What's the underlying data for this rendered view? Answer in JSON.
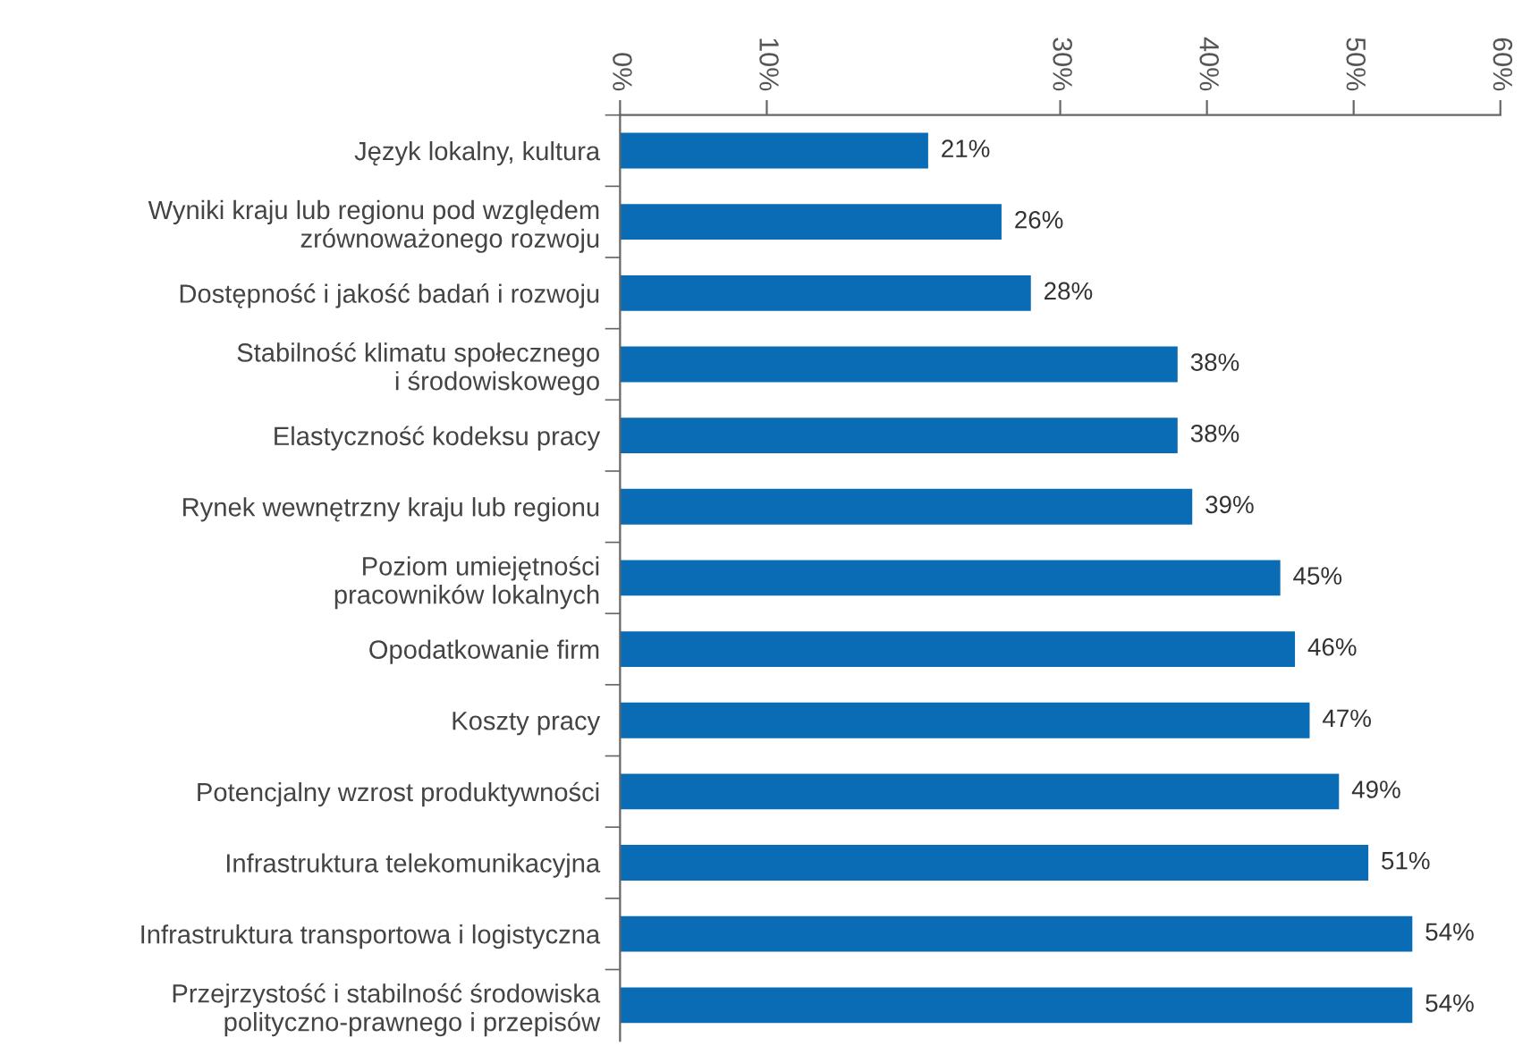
{
  "chart_data": {
    "type": "bar",
    "orientation": "horizontal",
    "categories": [
      "Język lokalny, kultura",
      "Wyniki kraju lub regionu pod względem\nzrównoważonego rozwoju",
      "Dostępność i jakość badań i rozwoju",
      "Stabilność klimatu społecznego\ni środowiskowego",
      "Elastyczność kodeksu pracy",
      "Rynek wewnętrzny kraju lub regionu",
      "Poziom umiejętności\npracowników lokalnych",
      "Opodatkowanie firm",
      "Koszty pracy",
      "Potencjalny wzrost produktywności",
      "Infrastruktura telekomunikacyjna",
      "Infrastruktura transportowa i logistyczna",
      "Przejrzystość i stabilność środowiska\npolityczno-prawnego i przepisów"
    ],
    "values": [
      21,
      26,
      28,
      38,
      38,
      39,
      45,
      46,
      47,
      49,
      51,
      54,
      54
    ],
    "value_labels": [
      "21%",
      "26%",
      "28%",
      "38%",
      "38%",
      "39%",
      "45%",
      "46%",
      "47%",
      "49%",
      "51%",
      "54%",
      "54%"
    ],
    "color": "#0a6cb5",
    "xlim": [
      0,
      60
    ],
    "xticks": [
      {
        "value": 0,
        "label": "0%"
      },
      {
        "value": 10,
        "label": "10%"
      },
      {
        "value": 30,
        "label": "30%"
      },
      {
        "value": 40,
        "label": "40%"
      },
      {
        "value": 50,
        "label": "50%"
      },
      {
        "value": 60,
        "label": "60%"
      }
    ],
    "grid": false,
    "legend": false
  }
}
